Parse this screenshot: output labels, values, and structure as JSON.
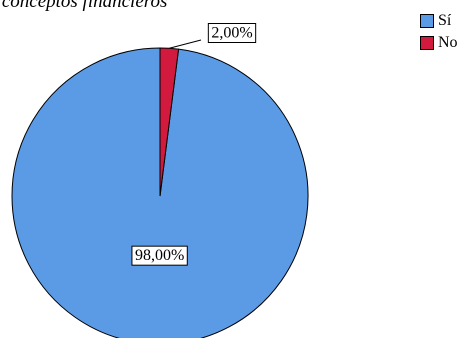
{
  "chart_data": {
    "type": "pie",
    "title": "…a de conceptos financieros",
    "categories": [
      "Sí",
      "No"
    ],
    "values": [
      98.0,
      2.0
    ],
    "data_labels": [
      "98,00%",
      "2,00%"
    ],
    "colors": [
      "#5B9BE6",
      "#D11A3E"
    ],
    "legend": {
      "placement": "top-right",
      "entries": [
        "Sí",
        "No"
      ]
    }
  }
}
